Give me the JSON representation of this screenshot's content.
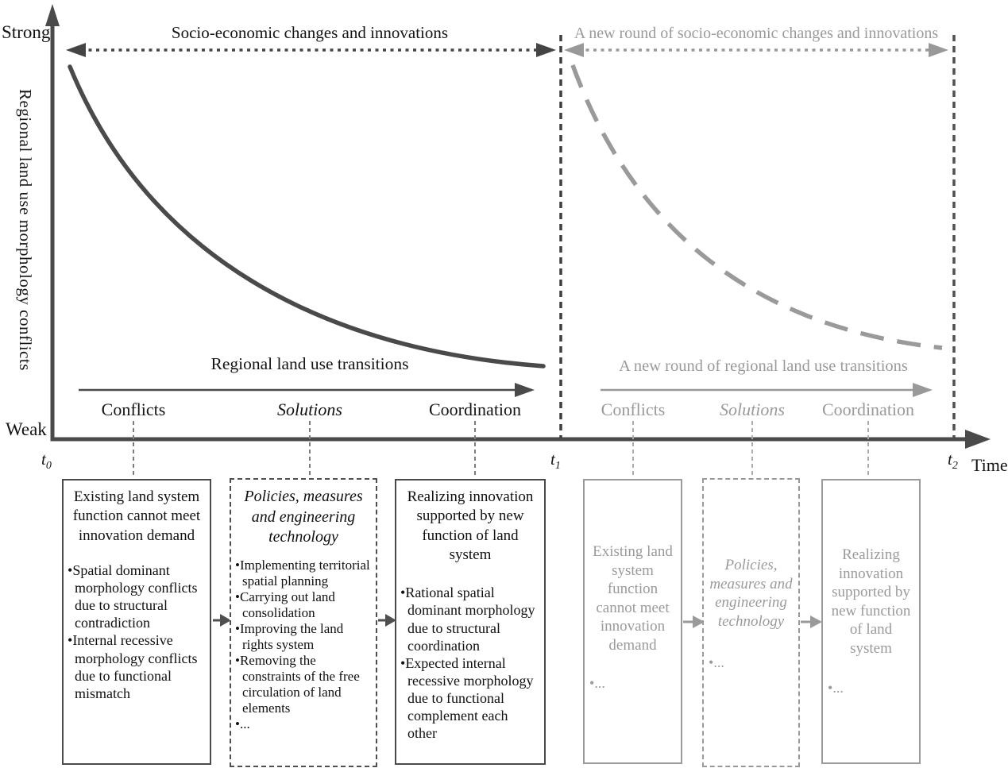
{
  "figure": {
    "y_axis": {
      "top": "Strong",
      "bottom": "Weak",
      "label": "Regional land use morphology conflicts"
    },
    "x_axis": {
      "label": "Time",
      "t0": {
        "base": "t",
        "sub": "0"
      },
      "t1": {
        "base": "t",
        "sub": "1"
      },
      "t2": {
        "base": "t",
        "sub": "2"
      }
    },
    "curves": {
      "solid": {
        "style": "solid dark curve",
        "trend": "declines from Strong at t0 to Weak near t1"
      },
      "dashed": {
        "style": "gray dashed curve",
        "trend": "declines from Strong at t1 to Weak near t2"
      }
    }
  },
  "phase1": {
    "top_arrow_label": "Socio-economic changes and innovations",
    "curve_label": "Regional land use transitions",
    "stages": {
      "conflicts": "Conflicts",
      "solutions": "Solutions",
      "coordination": "Coordination"
    },
    "boxes": [
      {
        "title": "Existing land system function cannot meet innovation demand",
        "bullets": [
          "Spatial dominant morphology conflicts due to structural contradiction",
          "Internal recessive morphology conflicts due to functional mismatch"
        ]
      },
      {
        "title": "Policies, measures and engineering technology",
        "bullets": [
          "Implementing territorial spatial planning",
          "Carrying out land consolidation",
          "Improving the land rights system",
          "Removing the constraints of the free circulation of land elements",
          "..."
        ]
      },
      {
        "title": "Realizing innovation supported by new function of land system",
        "bullets": [
          "Rational spatial dominant morphology due to structural coordination",
          "Expected internal recessive morphology due to functional complement each other"
        ]
      }
    ]
  },
  "phase2": {
    "top_arrow_label": "A new round of socio-economic changes and innovations",
    "curve_label": "A new round of regional land use transitions",
    "stages": {
      "conflicts": "Conflicts",
      "solutions": "Solutions",
      "coordination": "Coordination"
    },
    "boxes": [
      {
        "title": "Existing land system function cannot meet innovation demand",
        "bullets": [
          "..."
        ]
      },
      {
        "title": "Policies, measures and engineering technology",
        "bullets": [
          "..."
        ]
      },
      {
        "title": "Realizing innovation supported by new function of land system",
        "bullets": [
          "..."
        ]
      }
    ]
  },
  "colors": {
    "dark_line": "#4a4a4a",
    "gray_line": "#9a9a9a",
    "text_dark": "#141414",
    "text_gray": "#9a9a9a"
  }
}
